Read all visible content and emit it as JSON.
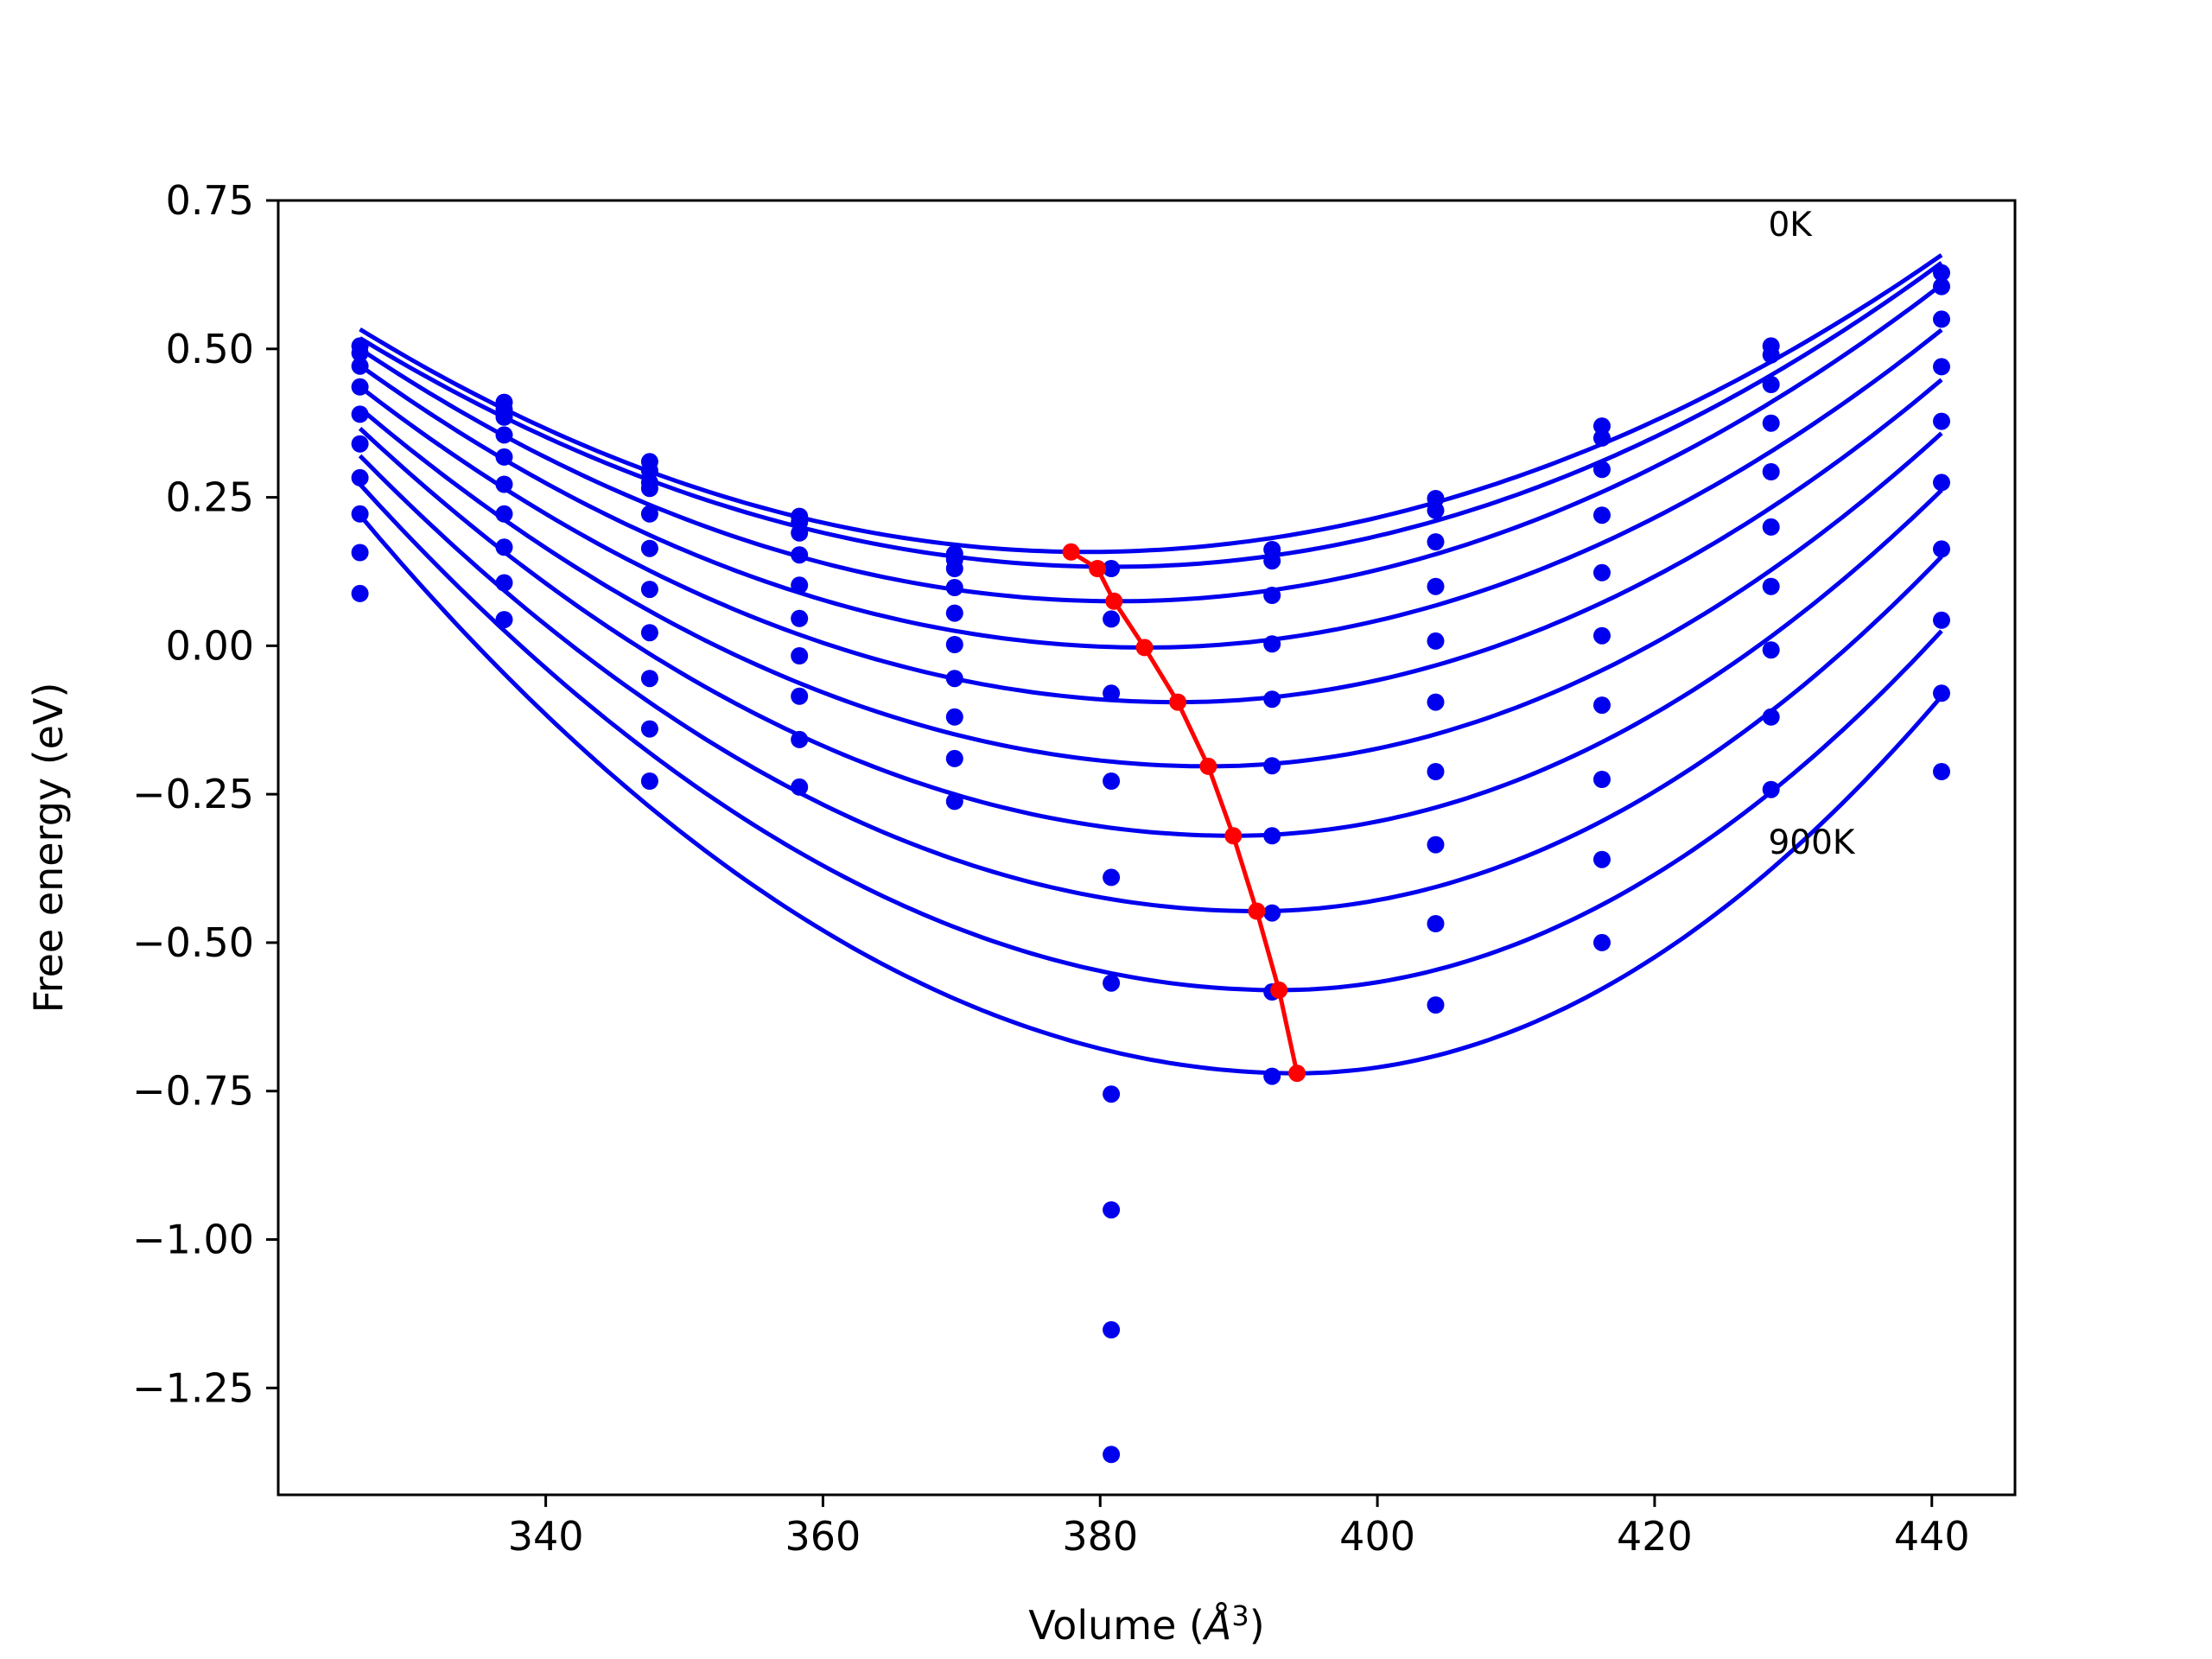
{
  "chart_data": {
    "type": "scatter",
    "title": "",
    "xlabel": "Volume (",
    "xlabel_symbol": "Å",
    "xlabel_sup": "3",
    "xlabel_close": ")",
    "ylabel": "Free energy (eV)",
    "xlim": [
      320.7,
      446.0
    ],
    "ylim": [
      -1.43,
      0.75
    ],
    "xticks": [
      340,
      360,
      380,
      400,
      420,
      440
    ],
    "xtick_labels": [
      "340",
      "360",
      "380",
      "400",
      "420",
      "440"
    ],
    "yticks": [
      0.75,
      0.5,
      0.25,
      0.0,
      -0.25,
      -0.5,
      -0.75,
      -1.0,
      -1.25
    ],
    "ytick_labels": [
      "0.75",
      "0.50",
      "0.25",
      "0.00",
      "−0.25",
      "−0.50",
      "−0.75",
      "−1.00",
      "−1.25"
    ],
    "grid": false,
    "colors": {
      "fit_curves": "#0000ee",
      "data_points": "#0000ee",
      "minimum_path": "#ff0000"
    },
    "annotations": [
      {
        "text": "0K",
        "x": 428.2,
        "y": 0.69
      },
      {
        "text": "900K",
        "x": 428.2,
        "y": -0.35
      }
    ],
    "volumes": [
      326.6,
      337.0,
      347.5,
      358.3,
      369.5,
      380.8,
      392.4,
      404.2,
      416.2,
      428.4,
      440.7
    ],
    "data_points": [
      [
        326.6,
        0.505
      ],
      [
        326.6,
        0.493
      ],
      [
        326.6,
        0.471
      ],
      [
        326.6,
        0.436
      ],
      [
        326.6,
        0.39
      ],
      [
        326.6,
        0.34
      ],
      [
        326.6,
        0.283
      ],
      [
        326.6,
        0.222
      ],
      [
        326.6,
        0.157
      ],
      [
        326.6,
        0.088
      ],
      [
        337.0,
        0.41
      ],
      [
        337.0,
        0.398
      ],
      [
        337.0,
        0.385
      ],
      [
        337.0,
        0.355
      ],
      [
        337.0,
        0.318
      ],
      [
        337.0,
        0.272
      ],
      [
        337.0,
        0.222
      ],
      [
        337.0,
        0.166
      ],
      [
        337.0,
        0.106
      ],
      [
        337.0,
        0.044
      ],
      [
        347.5,
        0.31
      ],
      [
        347.5,
        0.295
      ],
      [
        347.5,
        0.275
      ],
      [
        347.5,
        0.265
      ],
      [
        347.5,
        0.222
      ],
      [
        347.5,
        0.164
      ],
      [
        347.5,
        0.095
      ],
      [
        347.5,
        0.022
      ],
      [
        347.5,
        -0.055
      ],
      [
        347.5,
        -0.14
      ],
      [
        347.5,
        -0.228
      ],
      [
        358.3,
        0.218
      ],
      [
        358.3,
        0.208
      ],
      [
        358.3,
        0.19
      ],
      [
        358.3,
        0.153
      ],
      [
        358.3,
        0.102
      ],
      [
        358.3,
        0.046
      ],
      [
        358.3,
        -0.017
      ],
      [
        358.3,
        -0.085
      ],
      [
        358.3,
        -0.158
      ],
      [
        358.3,
        -0.238
      ],
      [
        369.5,
        0.155
      ],
      [
        369.5,
        0.145
      ],
      [
        369.5,
        0.13
      ],
      [
        369.5,
        0.098
      ],
      [
        369.5,
        0.055
      ],
      [
        369.5,
        0.002
      ],
      [
        369.5,
        -0.055
      ],
      [
        369.5,
        -0.12
      ],
      [
        369.5,
        -0.19
      ],
      [
        369.5,
        -0.262
      ],
      [
        380.8,
        0.13
      ],
      [
        380.8,
        0.045
      ],
      [
        380.8,
        -0.08
      ],
      [
        380.8,
        -0.228
      ],
      [
        380.8,
        -0.39
      ],
      [
        380.8,
        -0.568
      ],
      [
        380.8,
        -0.755
      ],
      [
        380.8,
        -0.95
      ],
      [
        380.8,
        -1.152
      ],
      [
        380.8,
        -1.362
      ],
      [
        392.4,
        0.162
      ],
      [
        392.4,
        0.143
      ],
      [
        392.4,
        0.085
      ],
      [
        392.4,
        0.003
      ],
      [
        392.4,
        -0.09
      ],
      [
        392.4,
        -0.202
      ],
      [
        392.4,
        -0.32
      ],
      [
        392.4,
        -0.45
      ],
      [
        392.4,
        -0.583
      ],
      [
        392.4,
        -0.725
      ],
      [
        404.2,
        0.248
      ],
      [
        404.2,
        0.228
      ],
      [
        404.2,
        0.175
      ],
      [
        404.2,
        0.1
      ],
      [
        404.2,
        0.008
      ],
      [
        404.2,
        -0.095
      ],
      [
        404.2,
        -0.212
      ],
      [
        404.2,
        -0.335
      ],
      [
        404.2,
        -0.468
      ],
      [
        404.2,
        -0.605
      ],
      [
        416.2,
        0.37
      ],
      [
        416.2,
        0.35
      ],
      [
        416.2,
        0.297
      ],
      [
        416.2,
        0.22
      ],
      [
        416.2,
        0.123
      ],
      [
        416.2,
        0.017
      ],
      [
        416.2,
        -0.1
      ],
      [
        416.2,
        -0.225
      ],
      [
        416.2,
        -0.36
      ],
      [
        416.2,
        -0.5
      ],
      [
        428.4,
        0.505
      ],
      [
        428.4,
        0.49
      ],
      [
        428.4,
        0.44
      ],
      [
        428.4,
        0.375
      ],
      [
        428.4,
        0.293
      ],
      [
        428.4,
        0.2
      ],
      [
        428.4,
        0.1
      ],
      [
        428.4,
        -0.007
      ],
      [
        428.4,
        -0.12
      ],
      [
        428.4,
        -0.242
      ],
      [
        440.7,
        0.628
      ],
      [
        440.7,
        0.605
      ],
      [
        440.7,
        0.55
      ],
      [
        440.7,
        0.47
      ],
      [
        440.7,
        0.378
      ],
      [
        440.7,
        0.275
      ],
      [
        440.7,
        0.163
      ],
      [
        440.7,
        0.043
      ],
      [
        440.7,
        -0.08
      ],
      [
        440.7,
        -0.212
      ]
    ],
    "fit_curves": [
      {
        "v_min": 379.0,
        "f_min": 0.158,
        "f_left": 0.533,
        "f_right": 0.658
      },
      {
        "v_min": 381.0,
        "f_min": 0.133,
        "f_left": 0.518,
        "f_right": 0.645
      },
      {
        "v_min": 381.3,
        "f_min": 0.075,
        "f_left": 0.5,
        "f_right": 0.608
      },
      {
        "v_min": 383.3,
        "f_min": -0.003,
        "f_left": 0.472,
        "f_right": 0.532
      },
      {
        "v_min": 385.6,
        "f_min": -0.095,
        "f_left": 0.436,
        "f_right": 0.448
      },
      {
        "v_min": 387.8,
        "f_min": -0.203,
        "f_left": 0.4,
        "f_right": 0.358
      },
      {
        "v_min": 389.6,
        "f_min": -0.32,
        "f_left": 0.366,
        "f_right": 0.262
      },
      {
        "v_min": 391.3,
        "f_min": -0.447,
        "f_left": 0.32,
        "f_right": 0.15
      },
      {
        "v_min": 392.9,
        "f_min": -0.58,
        "f_left": 0.272,
        "f_right": 0.025
      },
      {
        "v_min": 394.2,
        "f_min": -0.72,
        "f_left": 0.22,
        "f_right": -0.085
      }
    ],
    "curve_range": [
      326.6,
      440.7
    ],
    "minimum_path": [
      [
        377.9,
        0.158
      ],
      [
        379.8,
        0.13
      ],
      [
        381.0,
        0.075
      ],
      [
        383.2,
        -0.003
      ],
      [
        385.6,
        -0.095
      ],
      [
        387.8,
        -0.203
      ],
      [
        389.6,
        -0.32
      ],
      [
        391.3,
        -0.447
      ],
      [
        392.9,
        -0.58
      ],
      [
        394.2,
        -0.72
      ]
    ]
  }
}
